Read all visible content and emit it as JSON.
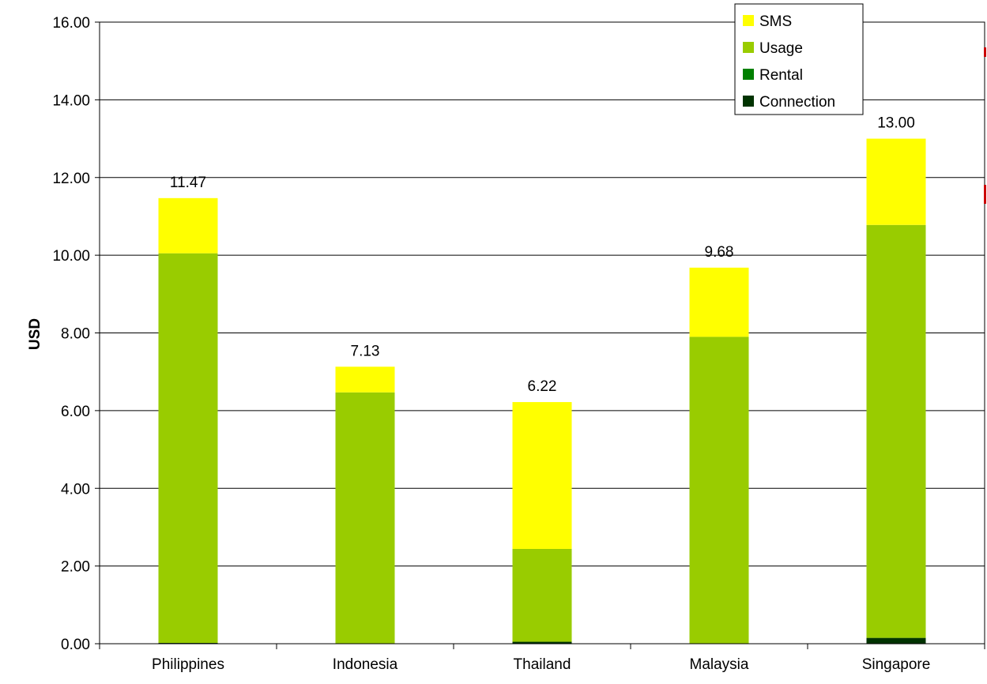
{
  "chart_data": {
    "type": "bar",
    "stacked": true,
    "categories": [
      "Philippines",
      "Indonesia",
      "Thailand",
      "Malaysia",
      "Singapore"
    ],
    "series": [
      {
        "name": "Connection",
        "color": "#003300",
        "values": [
          0.02,
          0.0,
          0.05,
          0.0,
          0.15
        ]
      },
      {
        "name": "Rental",
        "color": "#008000",
        "values": [
          0.0,
          0.0,
          0.0,
          0.0,
          0.0
        ]
      },
      {
        "name": "Usage",
        "color": "#99cc00",
        "values": [
          10.03,
          6.47,
          2.39,
          7.9,
          10.63
        ]
      },
      {
        "name": "SMS",
        "color": "#ffff00",
        "values": [
          1.42,
          0.66,
          3.78,
          1.78,
          2.22
        ]
      }
    ],
    "totals": [
      "11.47",
      "7.13",
      "6.22",
      "9.68",
      "13.00"
    ],
    "ylabel": "USD",
    "xlabel": "",
    "ylim": [
      0,
      16
    ],
    "yticks": [
      "0.00",
      "2.00",
      "4.00",
      "6.00",
      "8.00",
      "10.00",
      "12.00",
      "14.00",
      "16.00"
    ],
    "grid": true,
    "legend": {
      "placement": "top-right",
      "order": [
        "SMS",
        "Usage",
        "Rental",
        "Connection"
      ]
    }
  }
}
